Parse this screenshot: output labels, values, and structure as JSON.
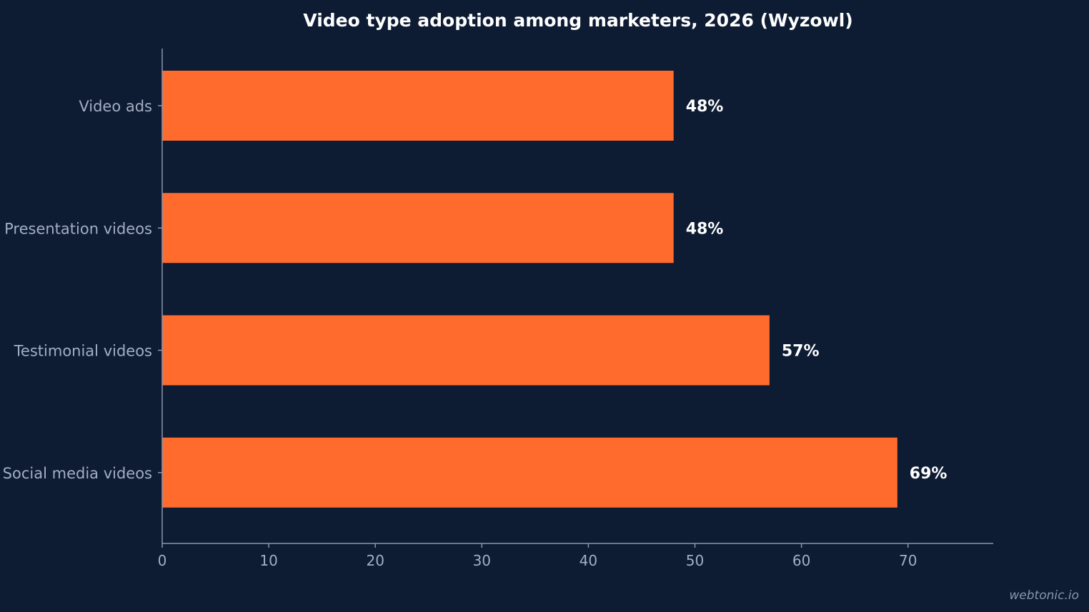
{
  "chart_data": {
    "type": "bar",
    "orientation": "horizontal",
    "title": "Video type adoption among marketers, 2026 (Wyzowl)",
    "xlabel": "",
    "ylabel": "",
    "categories": [
      "Video ads",
      "Presentation videos",
      "Testimonial videos",
      "Social media videos"
    ],
    "values": [
      48,
      48,
      57,
      69
    ],
    "value_labels": [
      "48%",
      "48%",
      "57%",
      "69%"
    ],
    "xlim": [
      0,
      78
    ],
    "xticks": [
      0,
      10,
      20,
      30,
      40,
      50,
      60,
      70
    ],
    "grid": false,
    "legend": "none"
  },
  "colors": {
    "background": "#0d1b33",
    "bar": "#ff6b2d",
    "axis": "#8c96ab",
    "text": "#a3aec2",
    "title": "#ffffff"
  },
  "watermark": "webtonic.io"
}
